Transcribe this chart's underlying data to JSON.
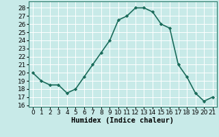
{
  "x": [
    0,
    1,
    2,
    3,
    4,
    5,
    6,
    7,
    8,
    9,
    10,
    11,
    12,
    13,
    14,
    15,
    16,
    17,
    18,
    19,
    20,
    21
  ],
  "y": [
    20,
    19,
    18.5,
    18.5,
    17.5,
    18,
    19.5,
    21,
    22.5,
    24,
    26.5,
    27,
    28,
    28,
    27.5,
    26,
    25.5,
    21,
    19.5,
    17.5,
    16.5,
    17
  ],
  "line_color": "#1a6b5a",
  "marker": "D",
  "marker_size": 2.2,
  "bg_color": "#c8eae8",
  "grid_color": "#e8c8c8",
  "grid_major_color": "#ffffff",
  "xlabel": "Humidex (Indice chaleur)",
  "xlabel_fontsize": 7.5,
  "ylabel_ticks": [
    16,
    17,
    18,
    19,
    20,
    21,
    22,
    23,
    24,
    25,
    26,
    27,
    28
  ],
  "xlim": [
    -0.5,
    21.5
  ],
  "ylim": [
    15.8,
    28.8
  ],
  "xticks": [
    0,
    1,
    2,
    3,
    4,
    5,
    6,
    7,
    8,
    9,
    10,
    11,
    12,
    13,
    14,
    15,
    16,
    17,
    18,
    19,
    20,
    21
  ],
  "tick_fontsize": 6.5,
  "linewidth": 1.2
}
